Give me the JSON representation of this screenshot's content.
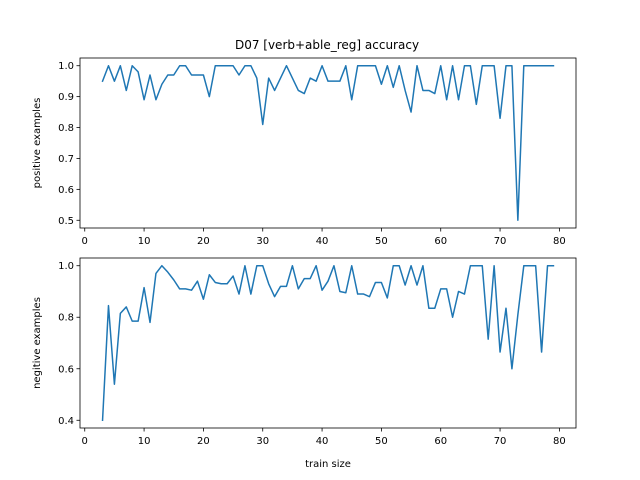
{
  "figure": {
    "title": "D07 [verb+able_reg] accuracy",
    "xlabel": "train size",
    "line_color": "#1f77b4"
  },
  "chart_data": [
    {
      "type": "line",
      "ylabel": "positive examples",
      "xlim": [
        -0.8,
        82.8
      ],
      "ylim": [
        0.475,
        1.025
      ],
      "xticks": [
        0,
        10,
        20,
        30,
        40,
        50,
        60,
        70,
        80
      ],
      "yticks": [
        0.5,
        0.6,
        0.7,
        0.8,
        0.9,
        1.0
      ],
      "ytick_labels": [
        "0.5",
        "0.6",
        "0.7",
        "0.8",
        "0.9",
        "1.0"
      ],
      "x": [
        3,
        4,
        5,
        6,
        7,
        8,
        9,
        10,
        11,
        12,
        13,
        14,
        15,
        16,
        17,
        18,
        19,
        20,
        21,
        22,
        23,
        24,
        25,
        26,
        27,
        28,
        29,
        30,
        31,
        32,
        33,
        34,
        35,
        36,
        37,
        38,
        39,
        40,
        41,
        42,
        43,
        44,
        45,
        46,
        47,
        48,
        49,
        50,
        51,
        52,
        53,
        54,
        55,
        56,
        57,
        58,
        59,
        60,
        61,
        62,
        63,
        64,
        65,
        66,
        67,
        68,
        69,
        70,
        71,
        72,
        73,
        74,
        75,
        76,
        77,
        78,
        79
      ],
      "y": [
        0.95,
        1.0,
        0.95,
        1.0,
        0.92,
        1.0,
        0.98,
        0.89,
        0.97,
        0.89,
        0.94,
        0.97,
        0.97,
        1.0,
        1.0,
        0.97,
        0.97,
        0.97,
        0.9,
        1.0,
        1.0,
        1.0,
        1.0,
        0.97,
        1.0,
        1.0,
        0.96,
        0.81,
        0.96,
        0.92,
        0.96,
        1.0,
        0.96,
        0.92,
        0.91,
        0.96,
        0.95,
        1.0,
        0.95,
        0.95,
        0.95,
        1.0,
        0.89,
        1.0,
        1.0,
        1.0,
        1.0,
        0.94,
        1.0,
        0.93,
        1.0,
        0.92,
        0.85,
        1.0,
        0.92,
        0.92,
        0.91,
        1.0,
        0.89,
        1.0,
        0.89,
        1.0,
        1.0,
        0.875,
        1.0,
        1.0,
        1.0,
        0.83,
        1.0,
        1.0,
        0.5,
        1.0,
        1.0,
        1.0,
        1.0,
        1.0,
        1.0
      ]
    },
    {
      "type": "line",
      "ylabel": "negitive examples",
      "xlim": [
        -0.8,
        82.8
      ],
      "ylim": [
        0.37,
        1.03
      ],
      "xticks": [
        0,
        10,
        20,
        30,
        40,
        50,
        60,
        70,
        80
      ],
      "yticks": [
        0.4,
        0.6,
        0.8,
        1.0
      ],
      "ytick_labels": [
        "0.4",
        "0.6",
        "0.8",
        "1.0"
      ],
      "x": [
        3,
        4,
        5,
        6,
        7,
        8,
        9,
        10,
        11,
        12,
        13,
        14,
        15,
        16,
        17,
        18,
        19,
        20,
        21,
        22,
        23,
        24,
        25,
        26,
        27,
        28,
        29,
        30,
        31,
        32,
        33,
        34,
        35,
        36,
        37,
        38,
        39,
        40,
        41,
        42,
        43,
        44,
        45,
        46,
        47,
        48,
        49,
        50,
        51,
        52,
        53,
        54,
        55,
        56,
        57,
        58,
        59,
        60,
        61,
        62,
        63,
        64,
        65,
        66,
        67,
        68,
        69,
        70,
        71,
        72,
        73,
        74,
        75,
        76,
        77,
        78,
        79
      ],
      "y": [
        0.4,
        0.845,
        0.54,
        0.815,
        0.84,
        0.785,
        0.785,
        0.915,
        0.78,
        0.97,
        1.0,
        0.975,
        0.945,
        0.91,
        0.91,
        0.905,
        0.94,
        0.87,
        0.965,
        0.935,
        0.93,
        0.93,
        0.96,
        0.89,
        1.0,
        0.89,
        1.0,
        1.0,
        0.93,
        0.88,
        0.92,
        0.92,
        1.0,
        0.91,
        0.95,
        0.95,
        1.0,
        0.905,
        0.94,
        1.0,
        0.9,
        0.895,
        1.0,
        0.89,
        0.89,
        0.88,
        0.935,
        0.935,
        0.875,
        1.0,
        1.0,
        0.925,
        1.0,
        0.925,
        1.0,
        0.835,
        0.835,
        0.91,
        0.91,
        0.8,
        0.9,
        0.89,
        1.0,
        1.0,
        1.0,
        0.715,
        1.0,
        0.665,
        0.835,
        0.6,
        0.81,
        1.0,
        1.0,
        1.0,
        0.665,
        1.0,
        1.0
      ]
    }
  ]
}
